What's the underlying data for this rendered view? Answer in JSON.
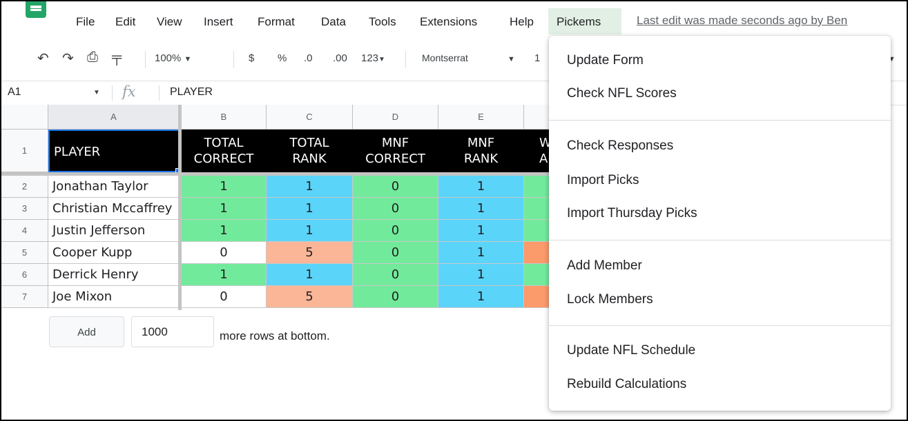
{
  "menubar": {
    "items": [
      "File",
      "Edit",
      "View",
      "Insert",
      "Format",
      "Data",
      "Tools",
      "Extensions",
      "Help"
    ],
    "active_menu": "Pickems",
    "last_edit": "Last edit was made seconds ago by Ben"
  },
  "toolbar": {
    "zoom": "100%",
    "currency": "$",
    "percent": "%",
    "decrease_decimals": ".0",
    "increase_decimals": ".00",
    "number_format": "123",
    "font": "Montserrat",
    "font_size_partial": "1"
  },
  "formula_bar": {
    "name_box": "A1",
    "fx": "fx",
    "value": "PLAYER"
  },
  "grid": {
    "columns": [
      "A",
      "B",
      "C",
      "D",
      "E"
    ],
    "header_row_number": "1",
    "headers": [
      {
        "line1": "PLAYER",
        "line2": ""
      },
      {
        "line1": "TOTAL",
        "line2": "CORRECT"
      },
      {
        "line1": "TOTAL",
        "line2": "RANK"
      },
      {
        "line1": "MNF",
        "line2": "CORRECT"
      },
      {
        "line1": "MNF",
        "line2": "RANK"
      },
      {
        "line1": "W",
        "line2": "A"
      }
    ],
    "rows": [
      {
        "num": "2",
        "player": "Jonathan Taylor",
        "total_correct": "1",
        "total_rank": "1",
        "mnf_correct": "0",
        "mnf_rank": "1"
      },
      {
        "num": "3",
        "player": "Christian Mccaffrey",
        "total_correct": "1",
        "total_rank": "1",
        "mnf_correct": "0",
        "mnf_rank": "1"
      },
      {
        "num": "4",
        "player": "Justin Jefferson",
        "total_correct": "1",
        "total_rank": "1",
        "mnf_correct": "0",
        "mnf_rank": "1"
      },
      {
        "num": "5",
        "player": "Cooper Kupp",
        "total_correct": "0",
        "total_rank": "5",
        "mnf_correct": "0",
        "mnf_rank": "1"
      },
      {
        "num": "6",
        "player": "Derrick Henry",
        "total_correct": "1",
        "total_rank": "1",
        "mnf_correct": "0",
        "mnf_rank": "1"
      },
      {
        "num": "7",
        "player": "Joe Mixon",
        "total_correct": "0",
        "total_rank": "5",
        "mnf_correct": "0",
        "mnf_rank": "1"
      }
    ],
    "colors": {
      "green": "#72ea9b",
      "blue": "#5bd4f9",
      "salmon": "#fbb597",
      "orange": "#fb9a6b"
    }
  },
  "add_rows": {
    "button_label": "Add",
    "count": "1000",
    "suffix": "more rows at bottom."
  },
  "pickems_menu": {
    "groups": [
      [
        "Update Form",
        "Check NFL Scores"
      ],
      [
        "Check Responses",
        "Import Picks",
        "Import Thursday Picks"
      ],
      [
        "Add Member",
        "Lock Members"
      ],
      [
        "Update NFL Schedule",
        "Rebuild Calculations"
      ]
    ]
  },
  "accent_color": "#23a566"
}
